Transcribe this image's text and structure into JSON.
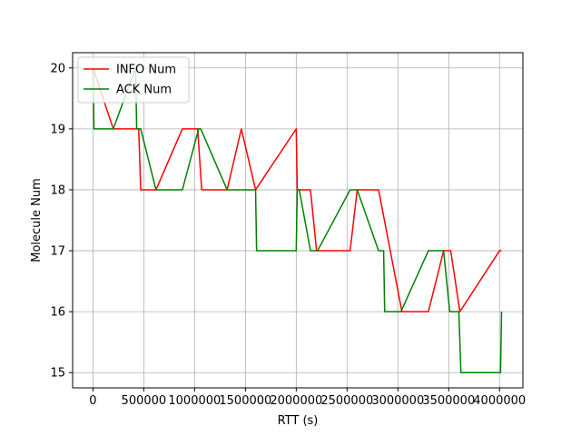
{
  "chart_data": {
    "type": "line",
    "xlabel": "RTT (s)",
    "ylabel": "Molecule Num",
    "xlim": [
      -200000,
      4230000
    ],
    "ylim": [
      14.75,
      20.25
    ],
    "xticks": [
      0,
      500000,
      1000000,
      1500000,
      2000000,
      2500000,
      3000000,
      3500000,
      4000000
    ],
    "xtick_labels": [
      "0",
      "500000",
      "1000000",
      "1500000",
      "2000000",
      "2500000",
      "3000000",
      "3500000",
      "4000000"
    ],
    "yticks": [
      15,
      16,
      17,
      18,
      19,
      20
    ],
    "ytick_labels": [
      "15",
      "16",
      "17",
      "18",
      "19",
      "20"
    ],
    "grid": true,
    "legend_position": "top-left",
    "series": [
      {
        "name": "INFO Num",
        "color": "#ff0000",
        "points": [
          [
            0,
            20
          ],
          [
            200000,
            19
          ],
          [
            450000,
            19
          ],
          [
            470000,
            18
          ],
          [
            620000,
            18
          ],
          [
            880000,
            19
          ],
          [
            1030000,
            19
          ],
          [
            1070000,
            18
          ],
          [
            1320000,
            18
          ],
          [
            1460000,
            19
          ],
          [
            1600000,
            18
          ],
          [
            2000000,
            19
          ],
          [
            2010000,
            18
          ],
          [
            2140000,
            18
          ],
          [
            2200000,
            17
          ],
          [
            2530000,
            17
          ],
          [
            2600000,
            18
          ],
          [
            2810000,
            18
          ],
          [
            3040000,
            16
          ],
          [
            3300000,
            16
          ],
          [
            3450000,
            17
          ],
          [
            3520000,
            17
          ],
          [
            3610000,
            16
          ],
          [
            4000000,
            17
          ],
          [
            4020000,
            17
          ]
        ]
      },
      {
        "name": "ACK Num",
        "color": "#008000",
        "points": [
          [
            0,
            20
          ],
          [
            10000,
            19
          ],
          [
            200000,
            19
          ],
          [
            420000,
            20
          ],
          [
            430000,
            19
          ],
          [
            470000,
            19
          ],
          [
            620000,
            18
          ],
          [
            880000,
            18
          ],
          [
            1040000,
            19
          ],
          [
            1060000,
            19
          ],
          [
            1320000,
            18
          ],
          [
            1600000,
            18
          ],
          [
            1610000,
            17
          ],
          [
            2000000,
            17
          ],
          [
            2010000,
            18
          ],
          [
            2030000,
            18
          ],
          [
            2140000,
            17
          ],
          [
            2210000,
            17
          ],
          [
            2530000,
            18
          ],
          [
            2600000,
            18
          ],
          [
            2810000,
            17
          ],
          [
            2860000,
            17
          ],
          [
            2870000,
            16
          ],
          [
            3030000,
            16
          ],
          [
            3300000,
            17
          ],
          [
            3450000,
            17
          ],
          [
            3510000,
            16
          ],
          [
            3600000,
            16
          ],
          [
            3620000,
            15
          ],
          [
            4010000,
            15
          ],
          [
            4020000,
            16
          ]
        ]
      }
    ]
  }
}
